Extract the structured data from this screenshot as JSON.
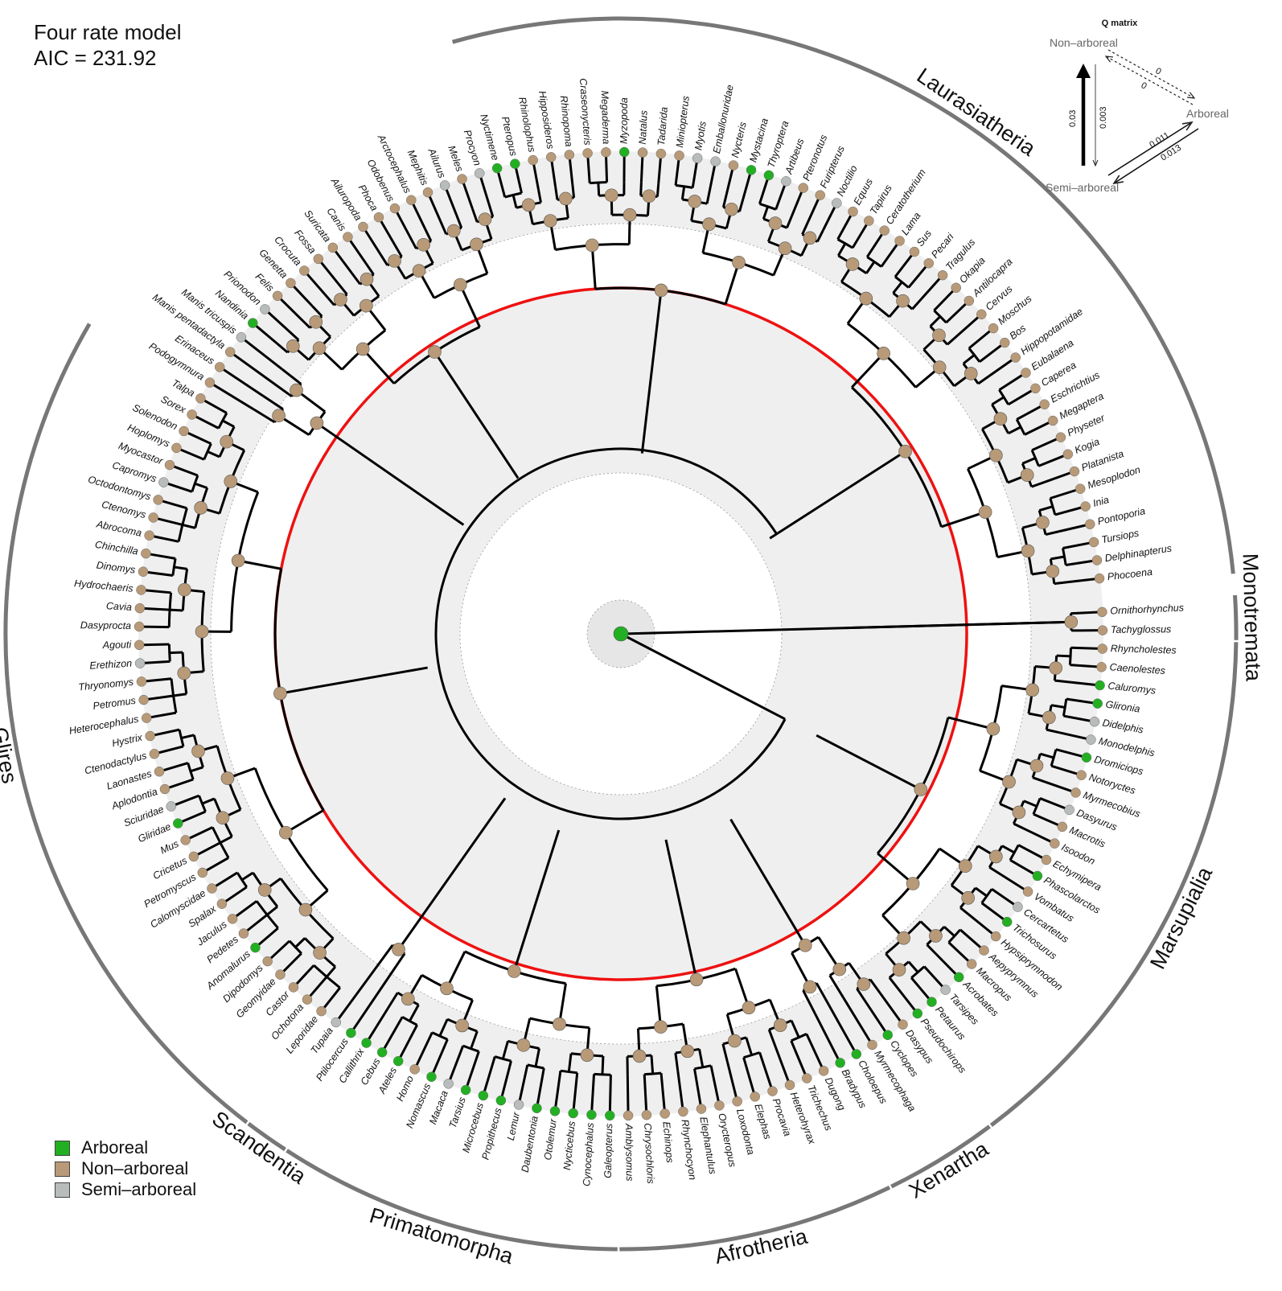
{
  "model": {
    "name": "Four rate model",
    "aic_label": "AIC = ",
    "aic_value": "231.92"
  },
  "legend": [
    {
      "label": "Arboreal",
      "color": "#22b022"
    },
    {
      "label": "Non–arboreal",
      "color": "#b89a78"
    },
    {
      "label": "Semi–arboreal",
      "color": "#b8bcba"
    }
  ],
  "colors": {
    "arboreal": "#22b022",
    "non_arboreal": "#b89a78",
    "semi_arboreal": "#b8bcba",
    "k_pg_ring": "#ee1111"
  },
  "q_matrix": {
    "title": "Q matrix",
    "states": {
      "non_arboreal": "Non–arboreal",
      "arboreal": "Arboreal",
      "semi_arboreal": "Semi–arboreal"
    },
    "rates": {
      "non_to_arb": "0",
      "arb_to_non": "0",
      "semi_to_non": "0.03",
      "non_to_semi": "0.003",
      "semi_to_arb": "0.011",
      "arb_to_semi": "0.013"
    }
  },
  "clades": [
    {
      "label": "Laurasiatheria"
    },
    {
      "label": "Monotremata"
    },
    {
      "label": "Marsupialia"
    },
    {
      "label": "Xenartha"
    },
    {
      "label": "Afrotheria"
    },
    {
      "label": "Primatomorpha"
    },
    {
      "label": "Scandentia"
    },
    {
      "label": "Glires"
    }
  ],
  "taxa": [
    {
      "name": "Ornithorhynchus",
      "state": "N"
    },
    {
      "name": "Tachyglossus",
      "state": "N"
    },
    {
      "name": "Rhyncholestes",
      "state": "N"
    },
    {
      "name": "Caenolestes",
      "state": "N"
    },
    {
      "name": "Caluromys",
      "state": "A"
    },
    {
      "name": "Glironia",
      "state": "A"
    },
    {
      "name": "Didelphis",
      "state": "S"
    },
    {
      "name": "Monodelphis",
      "state": "S"
    },
    {
      "name": "Dromiciops",
      "state": "A"
    },
    {
      "name": "Notoryctes",
      "state": "N"
    },
    {
      "name": "Myrmecobius",
      "state": "N"
    },
    {
      "name": "Dasyurus",
      "state": "S"
    },
    {
      "name": "Macrotis",
      "state": "N"
    },
    {
      "name": "Isoodon",
      "state": "N"
    },
    {
      "name": "Echymipera",
      "state": "N"
    },
    {
      "name": "Phascolarctos",
      "state": "A"
    },
    {
      "name": "Vombatus",
      "state": "N"
    },
    {
      "name": "Cercartetus",
      "state": "S"
    },
    {
      "name": "Trichosurus",
      "state": "A"
    },
    {
      "name": "Hypsiprymnodon",
      "state": "N"
    },
    {
      "name": "Aepyprymnus",
      "state": "N"
    },
    {
      "name": "Macropus",
      "state": "N"
    },
    {
      "name": "Acrobates",
      "state": "A"
    },
    {
      "name": "Tarsipes",
      "state": "S"
    },
    {
      "name": "Petaurus",
      "state": "A"
    },
    {
      "name": "Pseudochirops",
      "state": "A"
    },
    {
      "name": "Dasypus",
      "state": "N"
    },
    {
      "name": "Cyclopes",
      "state": "A"
    },
    {
      "name": "Myrmecophaga",
      "state": "N"
    },
    {
      "name": "Choloepus",
      "state": "A"
    },
    {
      "name": "Bradypus",
      "state": "A"
    },
    {
      "name": "Dugong",
      "state": "N"
    },
    {
      "name": "Trichechus",
      "state": "N"
    },
    {
      "name": "Heterohyrax",
      "state": "N"
    },
    {
      "name": "Procavia",
      "state": "N"
    },
    {
      "name": "Elephas",
      "state": "N"
    },
    {
      "name": "Loxodonta",
      "state": "N"
    },
    {
      "name": "Orycteropus",
      "state": "N"
    },
    {
      "name": "Elephantulus",
      "state": "N"
    },
    {
      "name": "Rhynchocyon",
      "state": "N"
    },
    {
      "name": "Echinops",
      "state": "N"
    },
    {
      "name": "Chrysochloris",
      "state": "N"
    },
    {
      "name": "Amblysomus",
      "state": "N"
    },
    {
      "name": "Galeopterus",
      "state": "A"
    },
    {
      "name": "Cynocephalus",
      "state": "A"
    },
    {
      "name": "Nycticebus",
      "state": "A"
    },
    {
      "name": "Otolemur",
      "state": "A"
    },
    {
      "name": "Daubentonia",
      "state": "A"
    },
    {
      "name": "Lemur",
      "state": "S"
    },
    {
      "name": "Propithecus",
      "state": "A"
    },
    {
      "name": "Microcebus",
      "state": "A"
    },
    {
      "name": "Tarsius",
      "state": "A"
    },
    {
      "name": "Macaca",
      "state": "S"
    },
    {
      "name": "Nomascus",
      "state": "A"
    },
    {
      "name": "Homo",
      "state": "N"
    },
    {
      "name": "Ateles",
      "state": "A"
    },
    {
      "name": "Cebus",
      "state": "A"
    },
    {
      "name": "Callithrix",
      "state": "A"
    },
    {
      "name": "Ptilocercus",
      "state": "A"
    },
    {
      "name": "Tupaia",
      "state": "S"
    },
    {
      "name": "Leporidae",
      "state": "N"
    },
    {
      "name": "Ochotona",
      "state": "N"
    },
    {
      "name": "Castor",
      "state": "N"
    },
    {
      "name": "Geomyidae",
      "state": "N"
    },
    {
      "name": "Dipodomys",
      "state": "N"
    },
    {
      "name": "Anomalurus",
      "state": "A"
    },
    {
      "name": "Pedetes",
      "state": "N"
    },
    {
      "name": "Jaculus",
      "state": "N"
    },
    {
      "name": "Spalax",
      "state": "N"
    },
    {
      "name": "Calomyscidae",
      "state": "N"
    },
    {
      "name": "Petromyscus",
      "state": "N"
    },
    {
      "name": "Cricetus",
      "state": "N"
    },
    {
      "name": "Mus",
      "state": "N"
    },
    {
      "name": "Gliridae",
      "state": "A"
    },
    {
      "name": "Sciuridae",
      "state": "S"
    },
    {
      "name": "Aplodontia",
      "state": "N"
    },
    {
      "name": "Laonastes",
      "state": "N"
    },
    {
      "name": "Ctenodactylus",
      "state": "N"
    },
    {
      "name": "Hystrix",
      "state": "N"
    },
    {
      "name": "Heterocephalus",
      "state": "N"
    },
    {
      "name": "Petromus",
      "state": "N"
    },
    {
      "name": "Thryonomys",
      "state": "N"
    },
    {
      "name": "Erethizon",
      "state": "S"
    },
    {
      "name": "Agouti",
      "state": "N"
    },
    {
      "name": "Dasyprocta",
      "state": "N"
    },
    {
      "name": "Cavia",
      "state": "N"
    },
    {
      "name": "Hydrochaeris",
      "state": "N"
    },
    {
      "name": "Dinomys",
      "state": "N"
    },
    {
      "name": "Chinchilla",
      "state": "N"
    },
    {
      "name": "Abrocoma",
      "state": "N"
    },
    {
      "name": "Ctenomys",
      "state": "N"
    },
    {
      "name": "Octodontomys",
      "state": "N"
    },
    {
      "name": "Capromys",
      "state": "S"
    },
    {
      "name": "Myocastor",
      "state": "N"
    },
    {
      "name": "Hoplomys",
      "state": "N"
    },
    {
      "name": "Solenodon",
      "state": "N"
    },
    {
      "name": "Sorex",
      "state": "N"
    },
    {
      "name": "Talpa",
      "state": "N"
    },
    {
      "name": "Podogymnura",
      "state": "N"
    },
    {
      "name": "Erinaceus",
      "state": "N"
    },
    {
      "name": "Manis pentadactyla",
      "state": "N"
    },
    {
      "name": "Manis tricuspis",
      "state": "S"
    },
    {
      "name": "Nandinia",
      "state": "A"
    },
    {
      "name": "Prionodon",
      "state": "S"
    },
    {
      "name": "Felis",
      "state": "N"
    },
    {
      "name": "Genetta",
      "state": "N"
    },
    {
      "name": "Crocuta",
      "state": "N"
    },
    {
      "name": "Fossa",
      "state": "N"
    },
    {
      "name": "Suricata",
      "state": "N"
    },
    {
      "name": "Canis",
      "state": "N"
    },
    {
      "name": "Ailuropoda",
      "state": "N"
    },
    {
      "name": "Phoca",
      "state": "N"
    },
    {
      "name": "Odobenus",
      "state": "N"
    },
    {
      "name": "Arctocephalus",
      "state": "N"
    },
    {
      "name": "Mephitis",
      "state": "N"
    },
    {
      "name": "Ailurus",
      "state": "S"
    },
    {
      "name": "Meles",
      "state": "N"
    },
    {
      "name": "Procyon",
      "state": "S"
    },
    {
      "name": "Nyctimene",
      "state": "A"
    },
    {
      "name": "Pteropus",
      "state": "A"
    },
    {
      "name": "Rhinolophus",
      "state": "N"
    },
    {
      "name": "Hipposideros",
      "state": "N"
    },
    {
      "name": "Rhinopoma",
      "state": "N"
    },
    {
      "name": "Craseonycteris",
      "state": "N"
    },
    {
      "name": "Megaderma",
      "state": "N"
    },
    {
      "name": "Myzopoda",
      "state": "A"
    },
    {
      "name": "Natalus",
      "state": "N"
    },
    {
      "name": "Tadarida",
      "state": "N"
    },
    {
      "name": "Miniopterus",
      "state": "N"
    },
    {
      "name": "Myotis",
      "state": "S"
    },
    {
      "name": "Emballonuridae",
      "state": "S"
    },
    {
      "name": "Nycteris",
      "state": "N"
    },
    {
      "name": "Mystacina",
      "state": "A"
    },
    {
      "name": "Thyroptera",
      "state": "A"
    },
    {
      "name": "Artibeus",
      "state": "S"
    },
    {
      "name": "Pteronotus",
      "state": "N"
    },
    {
      "name": "Furipterus",
      "state": "N"
    },
    {
      "name": "Noctilio",
      "state": "S"
    },
    {
      "name": "Equus",
      "state": "N"
    },
    {
      "name": "Tapirus",
      "state": "N"
    },
    {
      "name": "Ceratotherium",
      "state": "N"
    },
    {
      "name": "Lama",
      "state": "N"
    },
    {
      "name": "Sus",
      "state": "N"
    },
    {
      "name": "Pecari",
      "state": "N"
    },
    {
      "name": "Tragulus",
      "state": "N"
    },
    {
      "name": "Okapia",
      "state": "N"
    },
    {
      "name": "Antilocapra",
      "state": "N"
    },
    {
      "name": "Cervus",
      "state": "N"
    },
    {
      "name": "Moschus",
      "state": "N"
    },
    {
      "name": "Bos",
      "state": "N"
    },
    {
      "name": "Hippopotamidae",
      "state": "N"
    },
    {
      "name": "Eubalaena",
      "state": "N"
    },
    {
      "name": "Caperea",
      "state": "N"
    },
    {
      "name": "Eschrichtius",
      "state": "N"
    },
    {
      "name": "Megaptera",
      "state": "N"
    },
    {
      "name": "Physeter",
      "state": "N"
    },
    {
      "name": "Kogia",
      "state": "N"
    },
    {
      "name": "Platanista",
      "state": "N"
    },
    {
      "name": "Mesoplodon",
      "state": "N"
    },
    {
      "name": "Inia",
      "state": "N"
    },
    {
      "name": "Pontoporia",
      "state": "N"
    },
    {
      "name": "Tursiops",
      "state": "N"
    },
    {
      "name": "Delphinapterus",
      "state": "N"
    },
    {
      "name": "Phocoena",
      "state": "N"
    }
  ]
}
